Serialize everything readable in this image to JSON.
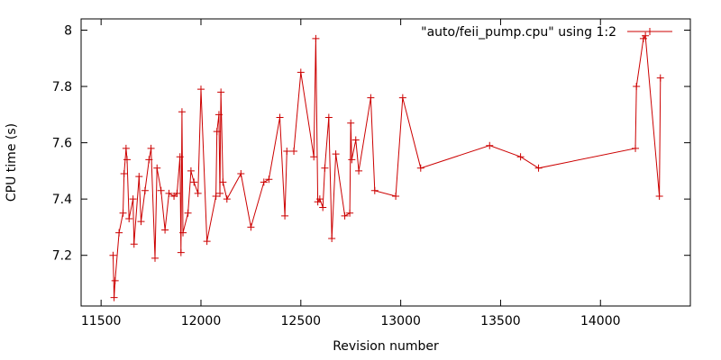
{
  "chart_data": {
    "type": "line",
    "xlabel": "Revision number",
    "ylabel": "CPU time (s)",
    "xlim": [
      11400,
      14450
    ],
    "ylim": [
      7.02,
      8.04
    ],
    "xticks": [
      11500,
      12000,
      12500,
      13000,
      13500,
      14000
    ],
    "yticks": [
      7.2,
      7.4,
      7.6,
      7.8,
      8
    ],
    "ytick_labels": [
      "7.2",
      "7.4",
      "7.6",
      "7.8",
      "8"
    ],
    "grid": false,
    "legend": "top-right",
    "colors": {
      "series": "#cc0000",
      "axis": "#000000"
    },
    "series": [
      {
        "name": "\"auto/feii_pump.cpu\" using 1:2",
        "points": [
          [
            11560,
            7.2
          ],
          [
            11565,
            7.05
          ],
          [
            11570,
            7.11
          ],
          [
            11590,
            7.28
          ],
          [
            11610,
            7.35
          ],
          [
            11615,
            7.49
          ],
          [
            11625,
            7.58
          ],
          [
            11630,
            7.54
          ],
          [
            11640,
            7.33
          ],
          [
            11660,
            7.4
          ],
          [
            11665,
            7.24
          ],
          [
            11690,
            7.48
          ],
          [
            11700,
            7.32
          ],
          [
            11720,
            7.43
          ],
          [
            11740,
            7.54
          ],
          [
            11750,
            7.58
          ],
          [
            11770,
            7.19
          ],
          [
            11780,
            7.51
          ],
          [
            11800,
            7.43
          ],
          [
            11820,
            7.29
          ],
          [
            11840,
            7.42
          ],
          [
            11865,
            7.41
          ],
          [
            11880,
            7.42
          ],
          [
            11895,
            7.55
          ],
          [
            11900,
            7.21
          ],
          [
            11905,
            7.71
          ],
          [
            11910,
            7.28
          ],
          [
            11935,
            7.35
          ],
          [
            11950,
            7.5
          ],
          [
            11965,
            7.46
          ],
          [
            11985,
            7.42
          ],
          [
            12000,
            7.79
          ],
          [
            12030,
            7.25
          ],
          [
            12075,
            7.41
          ],
          [
            12080,
            7.64
          ],
          [
            12090,
            7.7
          ],
          [
            12095,
            7.42
          ],
          [
            12100,
            7.78
          ],
          [
            12110,
            7.46
          ],
          [
            12130,
            7.4
          ],
          [
            12200,
            7.49
          ],
          [
            12250,
            7.3
          ],
          [
            12315,
            7.46
          ],
          [
            12340,
            7.47
          ],
          [
            12395,
            7.69
          ],
          [
            12420,
            7.34
          ],
          [
            12430,
            7.57
          ],
          [
            12465,
            7.57
          ],
          [
            12500,
            7.85
          ],
          [
            12565,
            7.55
          ],
          [
            12575,
            7.97
          ],
          [
            12585,
            7.39
          ],
          [
            12595,
            7.4
          ],
          [
            12610,
            7.37
          ],
          [
            12620,
            7.51
          ],
          [
            12640,
            7.69
          ],
          [
            12655,
            7.26
          ],
          [
            12675,
            7.56
          ],
          [
            12720,
            7.34
          ],
          [
            12745,
            7.35
          ],
          [
            12750,
            7.67
          ],
          [
            12755,
            7.54
          ],
          [
            12775,
            7.61
          ],
          [
            12790,
            7.5
          ],
          [
            12850,
            7.76
          ],
          [
            12870,
            7.43
          ],
          [
            12975,
            7.41
          ],
          [
            13010,
            7.76
          ],
          [
            13100,
            7.51
          ],
          [
            13445,
            7.59
          ],
          [
            13600,
            7.55
          ],
          [
            13690,
            7.51
          ],
          [
            14175,
            7.58
          ],
          [
            14180,
            7.8
          ],
          [
            14215,
            7.97
          ],
          [
            14225,
            7.98
          ],
          [
            14295,
            7.41
          ],
          [
            14300,
            7.83
          ]
        ]
      }
    ]
  }
}
